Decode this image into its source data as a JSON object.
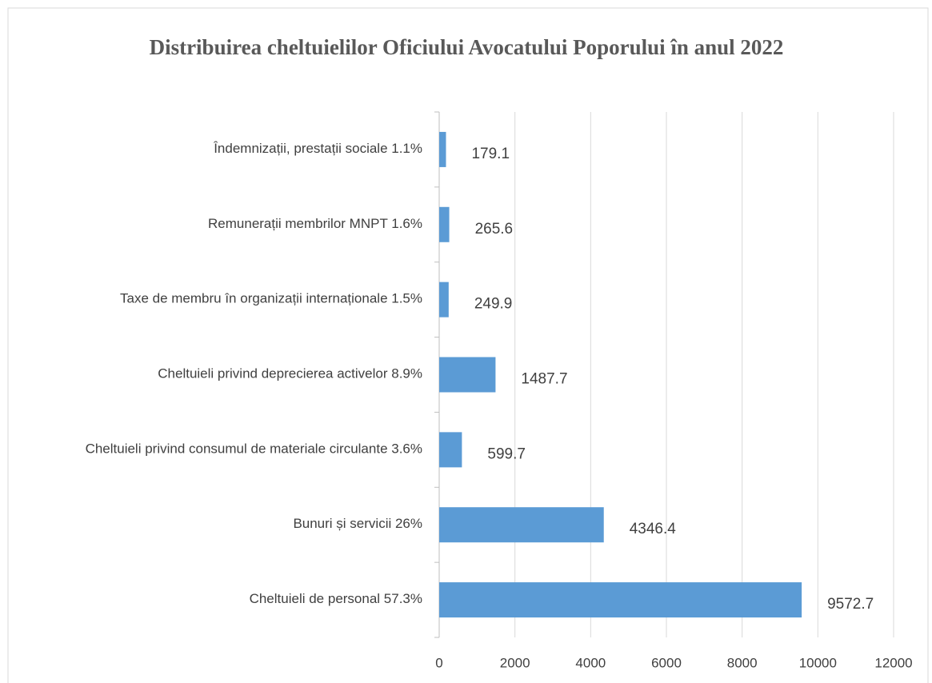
{
  "chart_data": {
    "type": "barh",
    "title": "Distribuirea cheltuielilor Oficiului Avocatului Poporului în anul 2022",
    "categories": [
      "Îndemnizații, prestații sociale 1.1%",
      "Remunerații membrilor MNPT 1.6%",
      "Taxe de membru în organizații internaționale 1.5%",
      "Cheltuieli privind deprecierea activelor  8.9%",
      "Cheltuieli privind  consumul de materiale circulante 3.6%",
      "Bunuri și servicii 26%",
      "Cheltuieli de personal 57.3%"
    ],
    "values": [
      179.1,
      265.6,
      249.9,
      1487.7,
      599.7,
      4346.4,
      9572.7
    ],
    "color": "#5b9bd5",
    "xlim": [
      0,
      12000
    ],
    "xticks": [
      0,
      2000,
      4000,
      6000,
      8000,
      10000,
      12000
    ],
    "grid": true
  }
}
